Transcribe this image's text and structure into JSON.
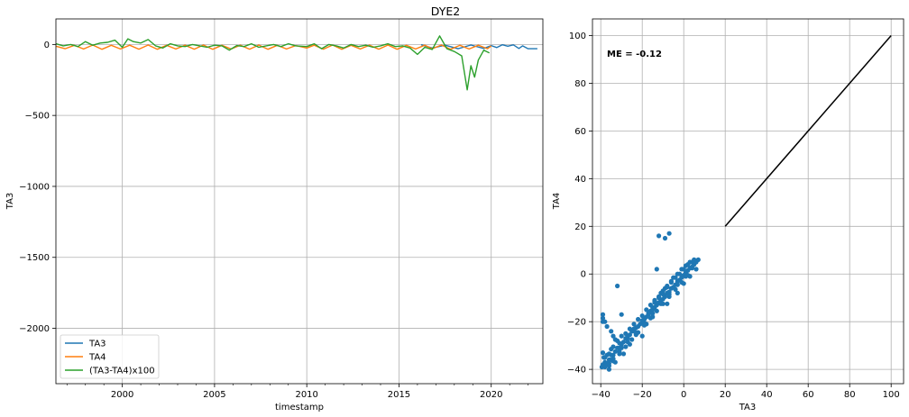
{
  "figure_title": "DYE2",
  "chart_data": [
    {
      "type": "line",
      "title": "",
      "xlabel": "timestamp",
      "ylabel": "TA3",
      "xlim": [
        1996.4,
        2022.8
      ],
      "ylim": [
        -2390,
        180
      ],
      "x_ticks": [
        2000,
        2005,
        2010,
        2015,
        2020
      ],
      "x_tick_labels": [
        "2000",
        "2005",
        "2010",
        "2015",
        "2020"
      ],
      "y_ticks": [
        0,
        -500,
        -1000,
        -1500,
        -2000
      ],
      "y_tick_labels": [
        "0",
        "−500",
        "−1000",
        "−1500",
        "−2000"
      ],
      "grid": true,
      "legend_position": "lower-left",
      "series": [
        {
          "name": "TA3",
          "color": "#1f77b4",
          "x": [
            2016.2,
            2016.8,
            2017.5,
            2018.2,
            2018.9,
            2019.6,
            2020.0,
            2020.3,
            2020.6,
            2020.9,
            2021.2,
            2021.5,
            2021.7,
            2022.0,
            2022.5
          ],
          "y": [
            -2,
            -25,
            -5,
            -30,
            -4,
            -28,
            -8,
            -22,
            -2,
            -12,
            -3,
            -28,
            -10,
            -30,
            -30
          ]
        },
        {
          "name": "TA4",
          "color": "#ff7f0e",
          "x": [
            1996.4,
            1996.9,
            1997.4,
            1997.9,
            1998.4,
            1998.9,
            1999.4,
            1999.9,
            2000.4,
            2000.9,
            2001.4,
            2001.9,
            2002.4,
            2002.9,
            2003.4,
            2003.9,
            2004.4,
            2004.9,
            2005.4,
            2005.9,
            2006.4,
            2006.9,
            2007.4,
            2007.9,
            2008.4,
            2008.9,
            2009.4,
            2010.0,
            2010.4,
            2010.9,
            2011.4,
            2011.9,
            2012.4,
            2012.9,
            2013.4,
            2013.9,
            2014.4,
            2014.9,
            2015.4,
            2015.9,
            2016.4,
            2016.8,
            2017.3,
            2017.8,
            2018.3,
            2018.8,
            2019.3,
            2019.8,
            2020.0
          ],
          "y": [
            -12,
            -30,
            -6,
            -32,
            -4,
            -34,
            -6,
            -32,
            -5,
            -33,
            -4,
            -34,
            -6,
            -32,
            -5,
            -33,
            -4,
            -34,
            -6,
            -32,
            -5,
            -33,
            -4,
            -34,
            -6,
            -32,
            -8,
            -25,
            -5,
            -33,
            -4,
            -34,
            -6,
            -32,
            -5,
            -33,
            -4,
            -34,
            -6,
            -32,
            -5,
            -30,
            -4,
            -34,
            -6,
            -32,
            -5,
            -30,
            -10
          ]
        },
        {
          "name": "(TA3-TA4)x100",
          "color": "#2ca02c",
          "x": [
            1996.4,
            1996.8,
            1997.2,
            1997.6,
            1998.0,
            1998.4,
            1998.8,
            1999.2,
            1999.6,
            2000.0,
            2000.3,
            2000.6,
            2001.0,
            2001.4,
            2001.8,
            2002.2,
            2002.6,
            2003.0,
            2003.4,
            2003.8,
            2004.2,
            2004.6,
            2005.0,
            2005.4,
            2005.8,
            2006.2,
            2006.6,
            2007.0,
            2007.4,
            2007.8,
            2008.2,
            2008.6,
            2009.0,
            2009.4,
            2010.0,
            2010.4,
            2010.8,
            2011.2,
            2011.6,
            2012.0,
            2012.4,
            2012.8,
            2013.2,
            2013.6,
            2014.0,
            2014.4,
            2014.8,
            2015.2,
            2015.6,
            2016.0,
            2016.4,
            2016.8,
            2017.2,
            2017.6,
            2018.0,
            2018.4,
            2018.7,
            2018.9,
            2019.1,
            2019.3,
            2019.6,
            2019.9
          ],
          "y": [
            5,
            -10,
            0,
            -15,
            20,
            -5,
            10,
            15,
            30,
            -20,
            40,
            20,
            10,
            35,
            -10,
            -25,
            5,
            -10,
            -15,
            0,
            -10,
            -20,
            -5,
            -10,
            -40,
            -8,
            -15,
            5,
            -20,
            -10,
            0,
            -15,
            5,
            -10,
            -15,
            5,
            -30,
            0,
            -10,
            -25,
            0,
            -15,
            -5,
            -20,
            -10,
            5,
            -15,
            -10,
            -25,
            -70,
            -20,
            -35,
            60,
            -30,
            -50,
            -80,
            -320,
            -150,
            -230,
            -110,
            -40,
            -60
          ]
        }
      ]
    },
    {
      "type": "scatter",
      "title": "",
      "xlabel": "TA3",
      "ylabel": "TA4",
      "xlim": [
        -44,
        106
      ],
      "ylim": [
        -46,
        107
      ],
      "x_ticks": [
        -40,
        -20,
        0,
        20,
        40,
        60,
        80,
        100
      ],
      "x_tick_labels": [
        "−40",
        "−20",
        "0",
        "20",
        "40",
        "60",
        "80",
        "100"
      ],
      "y_ticks": [
        -40,
        -20,
        0,
        20,
        40,
        60,
        80,
        100
      ],
      "y_tick_labels": [
        "−40",
        "−20",
        "0",
        "20",
        "40",
        "60",
        "80",
        "100"
      ],
      "grid": true,
      "annotation": "ME = -0.12",
      "point_color": "#1f77b4",
      "points": {
        "x": [
          -39.5,
          -39.0,
          -38.5,
          -38.0,
          -37.0,
          -36.0,
          -35.0,
          -34.0,
          -33.0,
          -32.0,
          -31.0,
          -30.0,
          -29.0,
          -28.0,
          -27.0,
          -26.0,
          -25.0,
          -24.0,
          -23.0,
          -22.0,
          -21.0,
          -20.0,
          -19.0,
          -18.0,
          -17.0,
          -16.0,
          -15.0,
          -14.0,
          -13.0,
          -12.0,
          -11.0,
          -10.0,
          -9.0,
          -8.0,
          -7.0,
          -6.0,
          -5.0,
          -4.0,
          -3.0,
          -2.0,
          -1.0,
          0.0,
          1.0,
          2.0,
          3.0,
          4.0,
          5.0,
          6.0,
          7.0,
          -38.0,
          -37.0,
          -36.0,
          -35.0,
          -34.0,
          -32.0,
          -30.0,
          -28.0,
          -26.0,
          -24.0,
          -22.0,
          -20.0,
          -18.0,
          -16.0,
          -14.0,
          -12.0,
          -10.0,
          -8.0,
          -6.0,
          -4.0,
          -2.0,
          0.0,
          2.0,
          4.0,
          -36.0,
          -34.0,
          -31.0,
          -28.0,
          -25.0,
          -22.0,
          -19.0,
          -16.0,
          -13.0,
          -10.0,
          -7.0,
          -4.0,
          -1.0,
          2.0,
          -39.0,
          -39.0,
          -38.0,
          -37.0,
          -35.0,
          -34.0,
          -33.0,
          -31.0,
          -30.0,
          -27.0,
          -24.0,
          -20.0,
          -17.0,
          -15.0,
          -14.0,
          -12.0,
          -11.0,
          -9.0,
          -8.0,
          -6.0,
          -5.0,
          -3.0,
          -1.0,
          1.0,
          3.0,
          5.0,
          -39.0,
          -39.0,
          -38.5,
          -35.5,
          -32.0,
          -30.0,
          -20.0,
          -15.0,
          -14.0,
          -13.0,
          -12.0,
          -10.0,
          -9.0,
          -7.0,
          -36.0,
          -33.0,
          -29.0,
          -26.0,
          -23.0,
          -18.0,
          -8.0,
          -3.0,
          0.0,
          3.0,
          6.0,
          -38.0,
          -36.0,
          -34.0,
          -31.0,
          -27.0,
          -23.0,
          -19.0,
          -15.0,
          -11.0,
          -7.0,
          -3.0,
          1.0,
          4.0
        ],
        "y": [
          -39.0,
          -38.0,
          -38.5,
          -37.0,
          -37.5,
          -36.0,
          -34.0,
          -34.0,
          -32.5,
          -31.0,
          -31.0,
          -29.5,
          -28.5,
          -27.0,
          -27.0,
          -25.5,
          -24.0,
          -24.0,
          -22.5,
          -22.0,
          -21.0,
          -19.5,
          -19.0,
          -18.0,
          -17.0,
          -15.5,
          -15.0,
          -14.0,
          -13.0,
          -12.0,
          -11.0,
          -10.5,
          -9.5,
          -8.0,
          -7.5,
          -6.0,
          -5.5,
          -4.5,
          -3.0,
          -2.5,
          -1.5,
          -0.5,
          0.5,
          1.5,
          2.5,
          3.0,
          4.0,
          5.0,
          6.0,
          -35.0,
          -34.0,
          -33.5,
          -31.5,
          -30.5,
          -28.0,
          -26.0,
          -25.0,
          -23.0,
          -21.0,
          -19.0,
          -17.5,
          -15.0,
          -13.0,
          -11.5,
          -9.5,
          -7.0,
          -5.5,
          -3.5,
          -1.5,
          0.0,
          2.0,
          4.0,
          5.0,
          -38.5,
          -36.5,
          -33.5,
          -30.5,
          -27.5,
          -24.5,
          -21.5,
          -18.5,
          -15.5,
          -12.5,
          -9.5,
          -6.5,
          -3.5,
          -0.5,
          -17.0,
          -18.5,
          -20.0,
          -22.0,
          -24.0,
          -26.0,
          -27.5,
          -29.0,
          -31.0,
          -26.0,
          -23.0,
          -20.0,
          -16.5,
          -14.0,
          -12.0,
          -10.0,
          -8.0,
          -6.0,
          -5.0,
          -3.0,
          -1.5,
          0.0,
          2.0,
          3.5,
          5.0,
          6.0,
          -20.0,
          -33.0,
          -35.0,
          -36.0,
          -5.0,
          -17.0,
          -26.0,
          -18.0,
          -11.0,
          2.0,
          16.0,
          -8.5,
          15.0,
          17.0,
          -40.0,
          -37.0,
          -33.5,
          -29.5,
          -25.5,
          -21.0,
          -12.5,
          -8.0,
          -4.0,
          -1.0,
          2.0,
          -39.0,
          -37.5,
          -35.5,
          -32.5,
          -28.5,
          -24.5,
          -20.5,
          -16.5,
          -12.5,
          -8.5,
          -4.5,
          -1.0,
          2.5
        ]
      },
      "reference_line": {
        "x": [
          20,
          100
        ],
        "y": [
          20,
          100
        ],
        "color": "#000000"
      }
    }
  ]
}
